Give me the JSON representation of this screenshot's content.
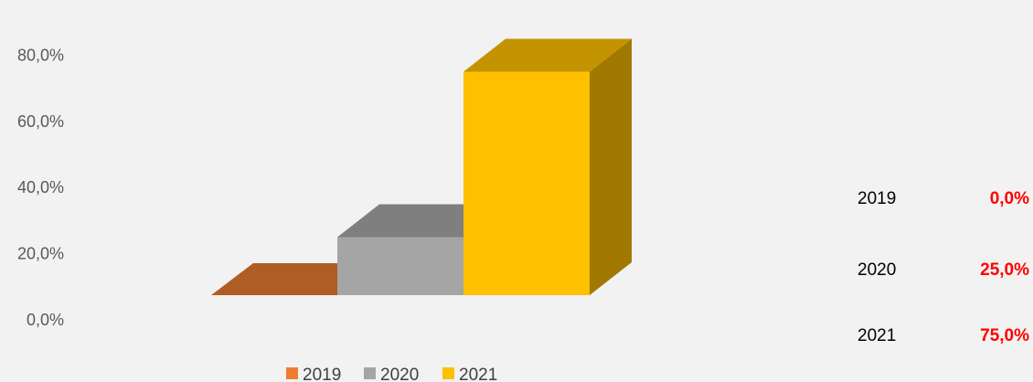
{
  "chart_data": {
    "type": "bar",
    "title": "",
    "xlabel": "",
    "ylabel": "",
    "ylim": [
      0,
      80
    ],
    "yticks": [
      "0,0%",
      "20,0%",
      "40,0%",
      "60,0%",
      "80,0%"
    ],
    "three_d": true,
    "legend_position": "bottom",
    "series": [
      {
        "name": "2019",
        "value": 0.0,
        "color": "#ed7d31"
      },
      {
        "name": "2020",
        "value": 25.0,
        "color": "#a5a5a5"
      },
      {
        "name": "2021",
        "value": 75.0,
        "color": "#ffc000"
      }
    ]
  },
  "side_table": {
    "rows": [
      {
        "year": "2019",
        "value": "0,0%"
      },
      {
        "year": "2020",
        "value": "25,0%"
      },
      {
        "year": "2021",
        "value": "75,0%"
      }
    ]
  }
}
